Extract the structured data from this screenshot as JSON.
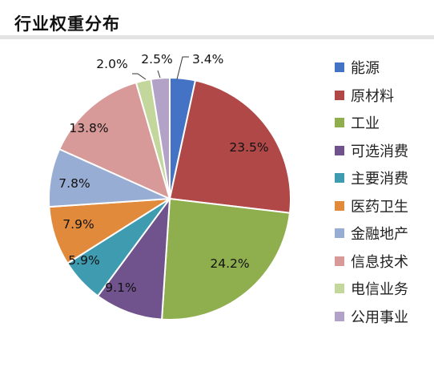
{
  "title": "行业权重分布",
  "chart_data": {
    "type": "pie",
    "title": "行业权重分布",
    "legend_position": "right",
    "slices": [
      {
        "label": "能源",
        "value": 3.4,
        "value_label": "3.4%",
        "color": "#4472c4"
      },
      {
        "label": "原材料",
        "value": 23.5,
        "value_label": "23.5%",
        "color": "#b04848"
      },
      {
        "label": "工业",
        "value": 24.2,
        "value_label": "24.2%",
        "color": "#8fae4e"
      },
      {
        "label": "可选消费",
        "value": 9.1,
        "value_label": "9.1%",
        "color": "#70538c"
      },
      {
        "label": "主要消费",
        "value": 5.9,
        "value_label": "5.9%",
        "color": "#3f9bb0"
      },
      {
        "label": "医药卫生",
        "value": 7.9,
        "value_label": "7.9%",
        "color": "#e28a3c"
      },
      {
        "label": "金融地产",
        "value": 7.8,
        "value_label": "7.8%",
        "color": "#98add4"
      },
      {
        "label": "信息技术",
        "value": 13.8,
        "value_label": "13.8%",
        "color": "#d89a98"
      },
      {
        "label": "电信业务",
        "value": 2.0,
        "value_label": "2.0%",
        "color": "#c3d69b"
      },
      {
        "label": "公用事业",
        "value": 2.5,
        "value_label": "2.5%",
        "color": "#b3a2c7"
      }
    ]
  }
}
